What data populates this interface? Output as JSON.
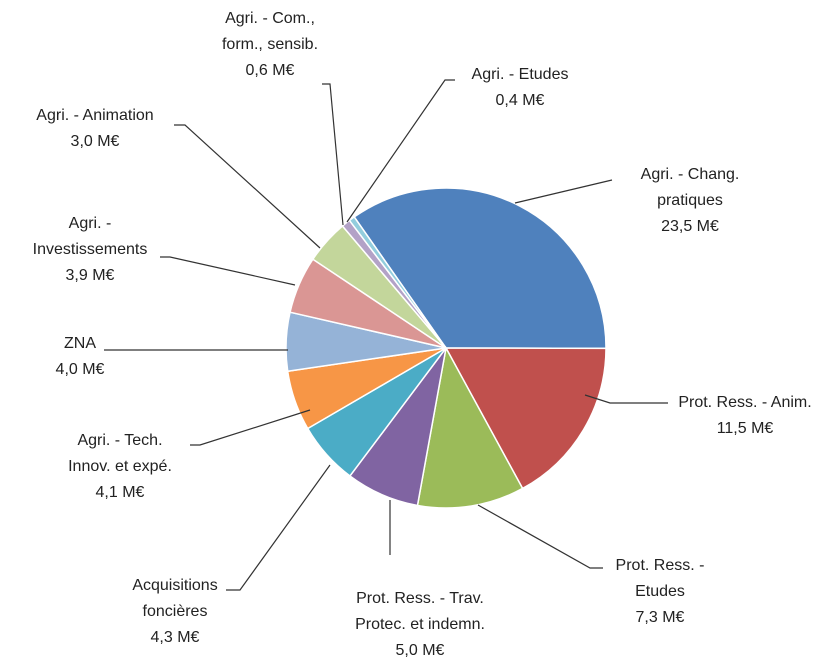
{
  "chart_data": {
    "type": "pie",
    "categories": [
      "Agri. - Chang.\npratiques",
      "Prot. Ress. - Anim.",
      "Prot. Ress. -\nEtudes",
      "Prot. Ress. - Trav.\nProtec. et indemn.",
      "Acquisitions\nfoncières",
      "Agri. - Tech.\nInnov. et expé.",
      "ZNA",
      "Agri. -\nInvestissements",
      "Agri. - Animation",
      "Agri. - Com.,\nform., sensib.",
      "Agri. - Etudes"
    ],
    "values": [
      23.5,
      11.5,
      7.3,
      5.0,
      4.3,
      4.1,
      4.0,
      3.9,
      3.0,
      0.6,
      0.4
    ],
    "value_labels": [
      "23,5 M€",
      "11,5 M€",
      "7,3 M€",
      "5,0 M€",
      "4,3 M€",
      "4,1 M€",
      "4,0 M€",
      "3,9 M€",
      "3,0 M€",
      "0,6 M€",
      "0,4 M€"
    ],
    "colors": [
      "#4F81BD",
      "#C0504D",
      "#9BBB59",
      "#8064A2",
      "#4BACC6",
      "#F79646",
      "#95B3D7",
      "#DA9694",
      "#C3D69B",
      "#B3A2C7",
      "#93CDDD"
    ]
  }
}
